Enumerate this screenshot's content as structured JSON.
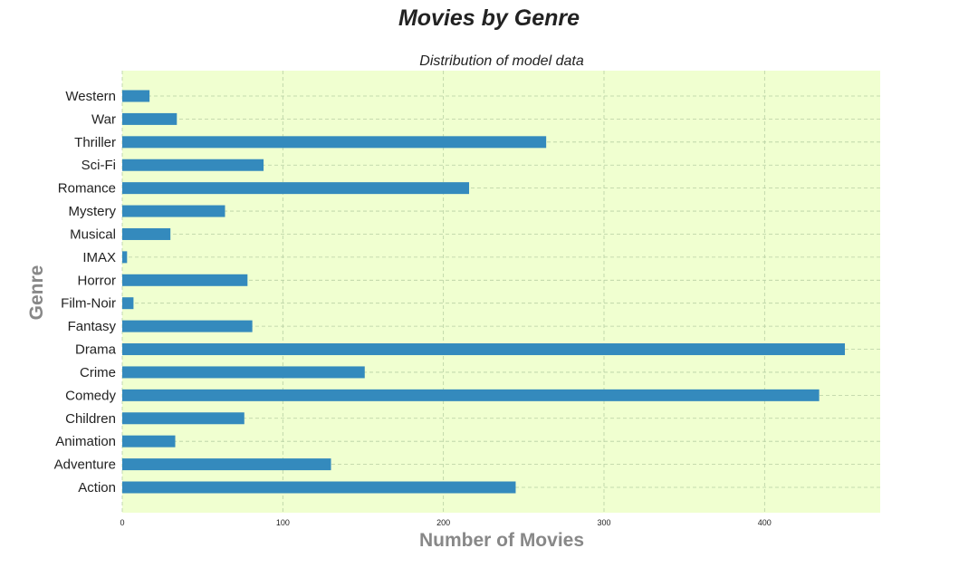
{
  "chart_data": {
    "type": "bar",
    "orientation": "horizontal",
    "title": "Movies by Genre",
    "subtitle": "Distribution of model data",
    "xlabel": "Number of Movies",
    "ylabel": "Genre",
    "categories": [
      "Action",
      "Adventure",
      "Animation",
      "Children",
      "Comedy",
      "Crime",
      "Drama",
      "Fantasy",
      "Film-Noir",
      "Horror",
      "IMAX",
      "Musical",
      "Mystery",
      "Romance",
      "Sci-Fi",
      "Thriller",
      "War",
      "Western"
    ],
    "values": [
      245,
      130,
      33,
      76,
      434,
      151,
      450,
      81,
      7,
      78,
      3,
      30,
      64,
      216,
      88,
      264,
      34,
      17
    ],
    "xlim": [
      0,
      472
    ],
    "xticks": [
      0,
      100,
      200,
      300,
      400
    ],
    "grid": true,
    "bar_color": "#348abd",
    "plot_background": "#f0ffd0",
    "grid_color": "#b7cfa3"
  }
}
